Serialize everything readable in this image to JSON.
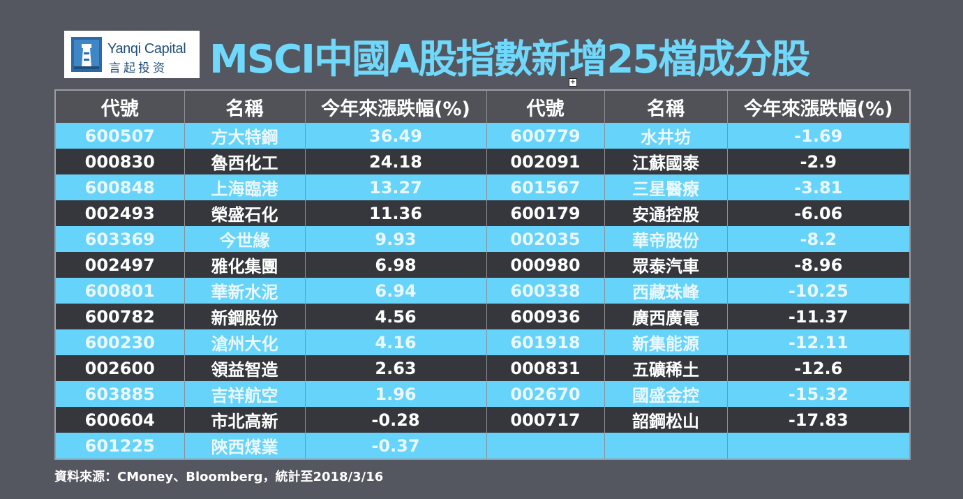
{
  "logo": {
    "name_en": "Yanqi Capital",
    "name_zh": "言起投资"
  },
  "title": "MSCI中國A股指數新增25檔成分股",
  "table": {
    "headers": [
      "代號",
      "名稱",
      "今年來漲跌幅(%)",
      "代號",
      "名稱",
      "今年來漲跌幅(%)"
    ],
    "rows": [
      [
        "600507",
        "方大特鋼",
        "36.49",
        "600779",
        "水井坊",
        "-1.69"
      ],
      [
        "000830",
        "魯西化工",
        "24.18",
        "002091",
        "江蘇國泰",
        "-2.9"
      ],
      [
        "600848",
        "上海臨港",
        "13.27",
        "601567",
        "三星醫療",
        "-3.81"
      ],
      [
        "002493",
        "榮盛石化",
        "11.36",
        "600179",
        "安通控股",
        "-6.06"
      ],
      [
        "603369",
        "今世緣",
        "9.93",
        "002035",
        "華帝股份",
        "-8.2"
      ],
      [
        "002497",
        "雅化集團",
        "6.98",
        "000980",
        "眾泰汽車",
        "-8.96"
      ],
      [
        "600801",
        "華新水泥",
        "6.94",
        "600338",
        "西藏珠峰",
        "-10.25"
      ],
      [
        "600782",
        "新鋼股份",
        "4.56",
        "600936",
        "廣西廣電",
        "-11.37"
      ],
      [
        "600230",
        "滄州大化",
        "4.16",
        "601918",
        "新集能源",
        "-12.11"
      ],
      [
        "002600",
        "領益智造",
        "2.63",
        "000831",
        "五礦稀土",
        "-12.6"
      ],
      [
        "603885",
        "吉祥航空",
        "1.96",
        "002670",
        "國盛金控",
        "-15.32"
      ],
      [
        "600604",
        "市北高新",
        "-0.28",
        "000717",
        "韶鋼松山",
        "-17.83"
      ],
      [
        "601225",
        "陝西煤業",
        "-0.37",
        "",
        "",
        ""
      ]
    ]
  },
  "footer": "資料來源：CMoney、Bloomberg，統計至2018/3/16",
  "colors": {
    "background": "#545760",
    "title": "#6fd8fb",
    "row_light": "#66d3fa",
    "row_dark": "#35373c",
    "header_bg": "#505258"
  }
}
